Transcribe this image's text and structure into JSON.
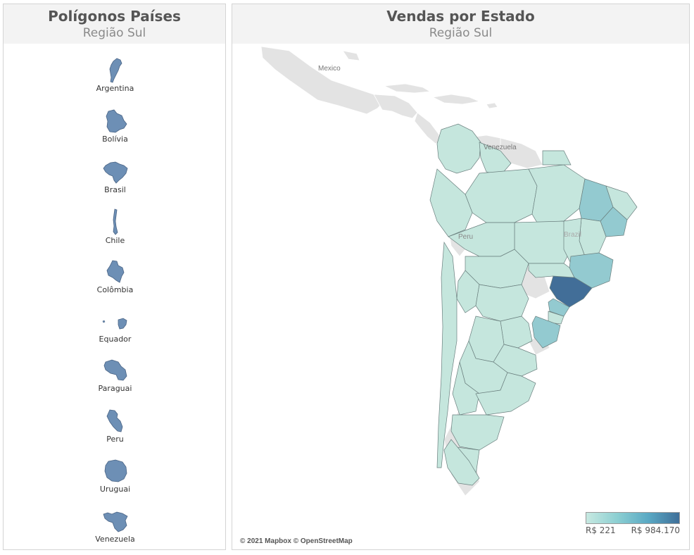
{
  "left_panel": {
    "title": "Polígonos Países",
    "subtitle": "Região Sul",
    "countries": [
      {
        "name": "Argentina"
      },
      {
        "name": "Bolívia"
      },
      {
        "name": "Brasil"
      },
      {
        "name": "Chile"
      },
      {
        "name": "Colômbia"
      },
      {
        "name": "Equador"
      },
      {
        "name": "Paraguai"
      },
      {
        "name": "Peru"
      },
      {
        "name": "Uruguai"
      },
      {
        "name": "Venezuela"
      }
    ]
  },
  "right_panel": {
    "title": "Vendas por Estado",
    "subtitle": "Região Sul",
    "map_labels": {
      "mexico": "Mexico",
      "venezuela": "Venezuela",
      "peru": "Peru",
      "brazil": "Brazil"
    },
    "attribution": "© 2021 Mapbox © OpenStreetMap",
    "legend": {
      "min_label": "R$ 221",
      "max_label": "R$ 984.170",
      "color_low": "#c7e9e1",
      "color_high": "#3f6f99"
    }
  },
  "colors": {
    "country_fill": "#6d8fb5",
    "land_background": "#e6e6e6",
    "state_light": "#c5e6dd",
    "state_medium": "#93cad0",
    "state_dark": "#426e98"
  }
}
